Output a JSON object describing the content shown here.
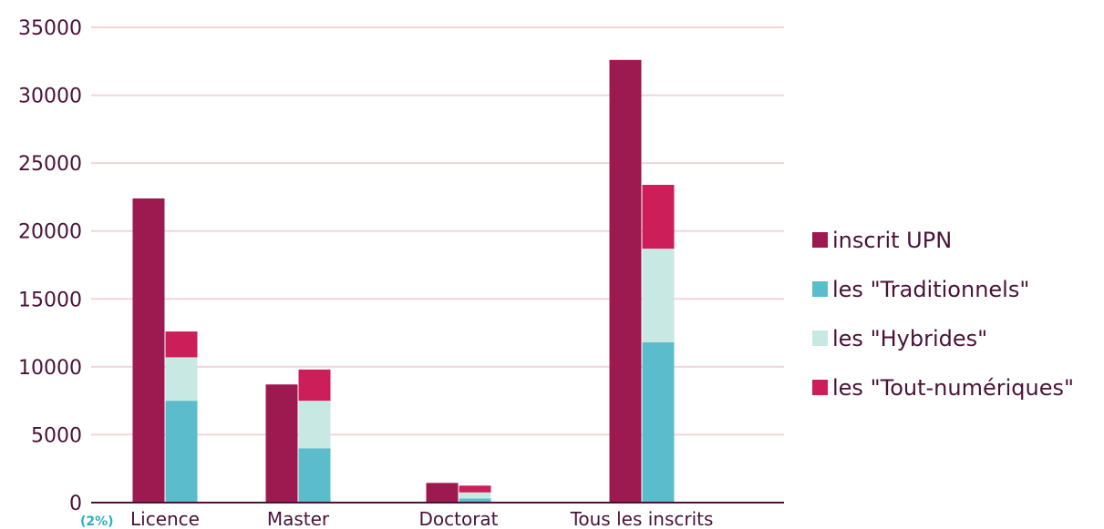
{
  "chart_data": {
    "type": "bar",
    "categories": [
      "Licence",
      "Master",
      "Doctorat",
      "Tous les inscrits"
    ],
    "ylim": [
      0,
      35000
    ],
    "yticks": [
      0,
      5000,
      10000,
      15000,
      20000,
      25000,
      30000,
      35000
    ],
    "grid": true,
    "legend_position": "right",
    "note": "(2%)",
    "series": [
      {
        "name": "inscrit UPN",
        "color": "#9c1a4f",
        "stack": "total",
        "values": [
          22400,
          8700,
          1450,
          32600
        ]
      },
      {
        "name": "les \"Traditionnels\"",
        "color": "#5bbccc",
        "stack": "profil",
        "values": [
          7500,
          4000,
          300,
          11800
        ]
      },
      {
        "name": "les \"Hybrides\"",
        "color": "#c8e8e3",
        "stack": "profil",
        "values": [
          3200,
          3500,
          450,
          6900
        ]
      },
      {
        "name": "les \"Tout-numériques\"",
        "color": "#cc1f5a",
        "stack": "profil",
        "values": [
          1900,
          2300,
          500,
          4700
        ]
      }
    ]
  }
}
